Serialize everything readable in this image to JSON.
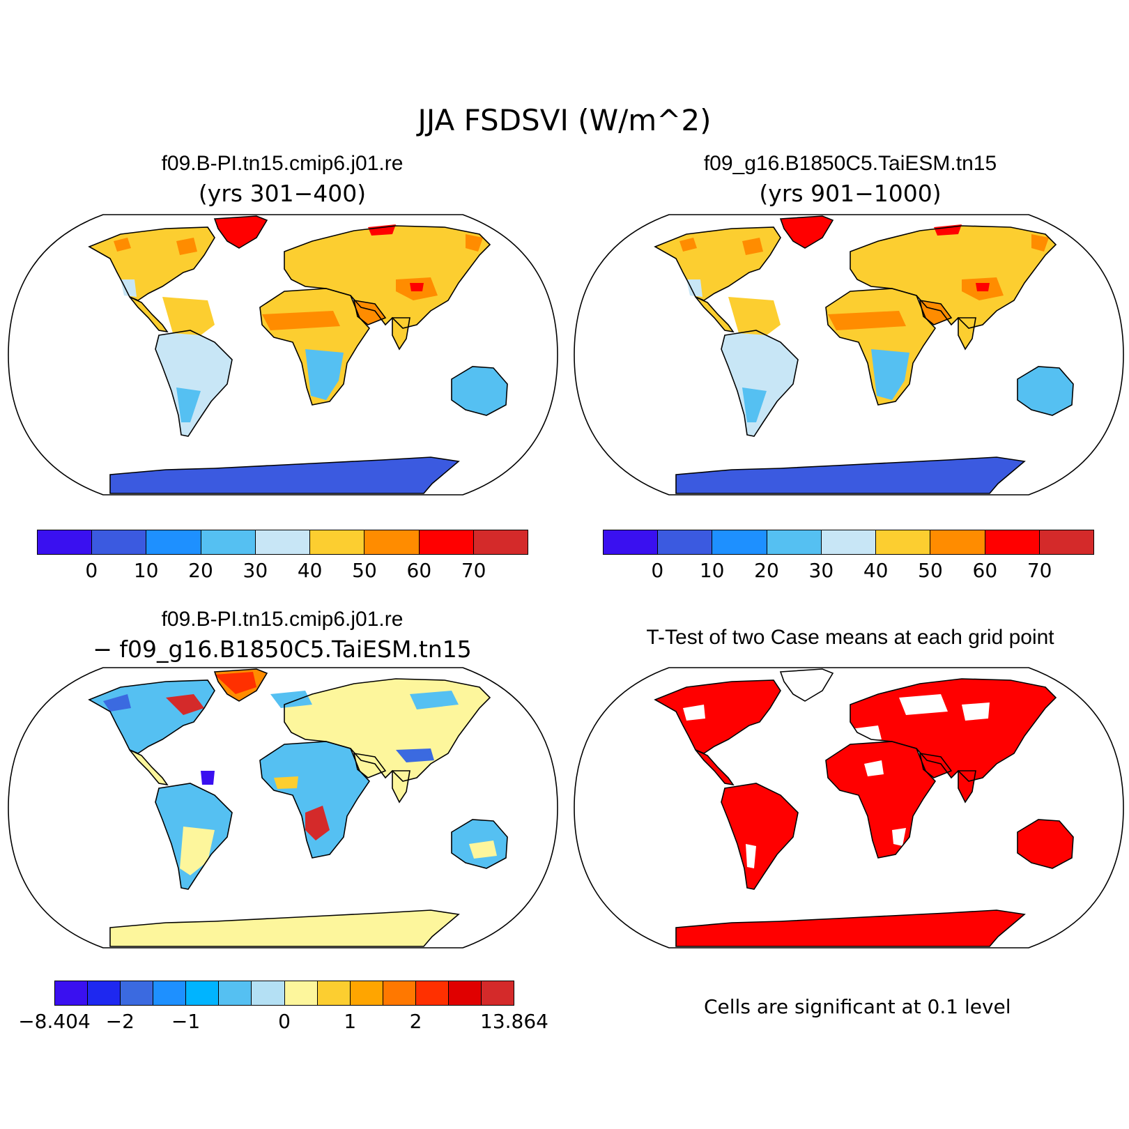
{
  "title": "JJA FSDSVI (W/m^2)",
  "panels": {
    "top_left": {
      "title": "f09.B-PI.tn15.cmip6.j01.re",
      "subtitle": "(yrs 301−400)"
    },
    "top_right": {
      "title": "f09_g16.B1850C5.TaiESM.tn15",
      "subtitle": "(yrs 901−1000)"
    },
    "bottom_left": {
      "title": "f09.B-PI.tn15.cmip6.j01.re",
      "subtitle": "− f09_g16.B1850C5.TaiESM.tn15"
    },
    "bottom_right": {
      "title": "T-Test of two Case means at each grid point",
      "note": "Cells are significant at 0.1 level"
    }
  },
  "colorbar_main": {
    "colors": [
      "#3a10f0",
      "#3b5ae0",
      "#1e90ff",
      "#55c0f2",
      "#c8e6f6",
      "#fcce30",
      "#ff8c00",
      "#ff0000",
      "#d42a2a"
    ],
    "labels": [
      "0",
      "10",
      "20",
      "30",
      "40",
      "50",
      "60",
      "70"
    ]
  },
  "colorbar_diff": {
    "colors": [
      "#3a10f0",
      "#1e28f0",
      "#3b6ae0",
      "#1e90ff",
      "#00b4ff",
      "#55c0f2",
      "#b4e0f4",
      "#fdf69c",
      "#fcce30",
      "#ffa500",
      "#ff7800",
      "#ff3000",
      "#e00000",
      "#d42a2a"
    ],
    "labels": [
      "−8.404",
      "−2",
      "−1",
      "0",
      "1",
      "2",
      "13.864"
    ]
  },
  "map_colors": {
    "land_warm": "#fcce30",
    "land_hot": "#ff8c00",
    "land_red": "#ff0000",
    "land_light": "#c8e6f6",
    "land_blue": "#55c0f2",
    "land_deep": "#3b5ae0",
    "diff_pale": "#fdf69c",
    "diff_blue": "#55c0f2",
    "signif": "#ff0000"
  }
}
